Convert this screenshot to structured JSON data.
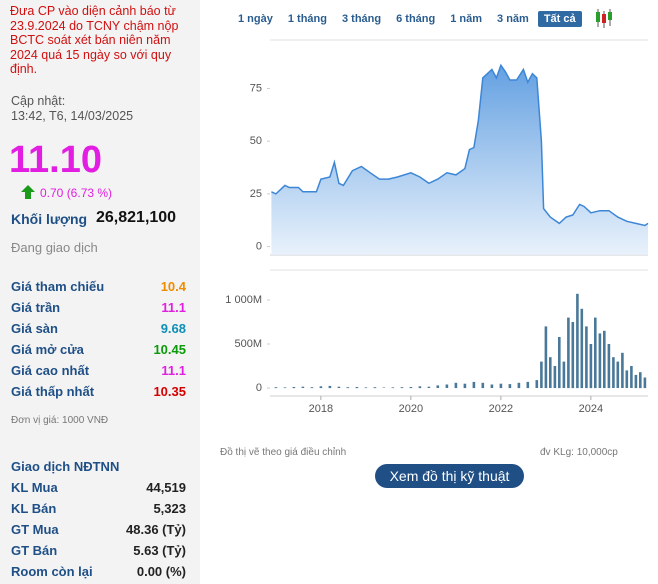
{
  "sidebar": {
    "warning": "Đưa CP vào diện cảnh báo từ 23.9.2024 do TCNY chậm nộp BCTC soát xét bán niên năm 2024 quá 15 ngày so với quy định.",
    "updated_label": "Cập nhật:",
    "updated_time": "13:42, T6, 14/03/2025",
    "price": "11.10",
    "change": "0.70 (6.73 %)",
    "volume_label": "Khối lượng",
    "volume": "26,821,100",
    "status": "Đang giao dịch",
    "price_rows": [
      {
        "label": "Giá tham chiếu",
        "value": "10.4",
        "color": "#f08c00"
      },
      {
        "label": "Giá trần",
        "value": "11.1",
        "color": "#e21ee2"
      },
      {
        "label": "Giá sàn",
        "value": "9.68",
        "color": "#0e8fb5"
      },
      {
        "label": "Giá mở cửa",
        "value": "10.45",
        "color": "#0a9a0a"
      },
      {
        "label": "Giá cao nhất",
        "value": "11.1",
        "color": "#e21ee2"
      },
      {
        "label": "Giá thấp nhất",
        "value": "10.35",
        "color": "#d40000"
      }
    ],
    "unit_note": "Đơn vị giá: 1000 VNĐ",
    "foreign_title": "Giao dịch NĐTNN",
    "foreign_rows": [
      {
        "label": "KL Mua",
        "value": "44,519"
      },
      {
        "label": "KL Bán",
        "value": "5,323"
      },
      {
        "label": "GT Mua",
        "value": "48.36 (Tỷ)"
      },
      {
        "label": "GT Bán",
        "value": "5.63 (Tỷ)"
      },
      {
        "label": "Room còn lại",
        "value": "0.00 (%)"
      }
    ]
  },
  "tabs": [
    "1 ngày",
    "1 tháng",
    "3 tháng",
    "6 tháng",
    "1 năm",
    "3 năm",
    "Tất cả"
  ],
  "active_tab": "Tất cả",
  "chart_data": [
    {
      "type": "area",
      "color": "#3d86d6",
      "x": [
        2016.9,
        2017.0,
        2017.2,
        2017.3,
        2017.5,
        2017.6,
        2017.9,
        2018.0,
        2018.2,
        2018.3,
        2018.4,
        2018.5,
        2018.7,
        2018.9,
        2019.1,
        2019.3,
        2019.5,
        2019.7,
        2020.0,
        2020.2,
        2020.4,
        2020.6,
        2020.8,
        2021.0,
        2021.2,
        2021.3,
        2021.4,
        2021.5,
        2021.6,
        2021.8,
        2021.9,
        2022.0,
        2022.1,
        2022.2,
        2022.35,
        2022.5,
        2022.6,
        2022.7,
        2022.8,
        2022.9,
        2022.95,
        2023.1,
        2023.3,
        2023.45,
        2023.6,
        2023.75,
        2023.85,
        2024.0,
        2024.2,
        2024.4,
        2024.6,
        2024.8,
        2025.0,
        2025.2,
        2025.27
      ],
      "values": [
        26,
        25,
        29,
        28,
        28,
        26,
        26,
        32,
        33,
        40,
        30,
        29,
        36,
        38,
        35,
        32,
        32,
        33,
        35,
        33,
        30,
        32,
        35,
        34,
        37,
        46,
        47,
        60,
        80,
        84,
        80,
        86,
        83,
        79,
        79,
        84,
        78,
        82,
        80,
        50,
        18,
        14,
        11,
        14,
        15,
        20,
        19,
        16,
        17,
        17,
        14,
        12,
        11,
        10,
        11
      ],
      "xlim": [
        2016.87,
        2025.27
      ],
      "ylim": [
        -4,
        98
      ],
      "yticks": [
        0,
        25,
        50,
        75
      ]
    },
    {
      "type": "bar",
      "color": "#4a7898",
      "x": [
        2017.0,
        2017.2,
        2017.4,
        2017.6,
        2017.8,
        2018.0,
        2018.2,
        2018.4,
        2018.6,
        2018.8,
        2019.0,
        2019.2,
        2019.4,
        2019.6,
        2019.8,
        2020.0,
        2020.2,
        2020.4,
        2020.6,
        2020.8,
        2021.0,
        2021.2,
        2021.4,
        2021.6,
        2021.8,
        2022.0,
        2022.2,
        2022.4,
        2022.6,
        2022.8,
        2022.9,
        2023.0,
        2023.1,
        2023.2,
        2023.3,
        2023.4,
        2023.5,
        2023.6,
        2023.7,
        2023.8,
        2023.9,
        2024.0,
        2024.1,
        2024.2,
        2024.3,
        2024.4,
        2024.5,
        2024.6,
        2024.7,
        2024.8,
        2024.9,
        2025.0,
        2025.1,
        2025.2
      ],
      "values": [
        10,
        8,
        12,
        15,
        10,
        20,
        25,
        15,
        10,
        12,
        8,
        10,
        6,
        8,
        10,
        12,
        20,
        15,
        30,
        40,
        60,
        50,
        70,
        60,
        40,
        50,
        45,
        60,
        70,
        90,
        300,
        700,
        350,
        250,
        580,
        300,
        800,
        750,
        1070,
        900,
        700,
        500,
        800,
        620,
        650,
        500,
        350,
        300,
        400,
        200,
        250,
        150,
        180,
        120
      ],
      "xlim": [
        2016.87,
        2025.27
      ],
      "xticks": [
        2018,
        2020,
        2022,
        2024
      ],
      "ylim": [
        -90,
        1340
      ],
      "yticks": [
        0,
        {
          "value": 500,
          "label": "500M"
        },
        {
          "value": 1000,
          "label": "1 000M"
        }
      ]
    }
  ],
  "footer": {
    "chart_note": "Đồ thị vẽ theo giá điều chỉnh",
    "volume_unit": "đv KLg: 10,000cp",
    "button": "Xem đồ thị kỹ thuật"
  }
}
